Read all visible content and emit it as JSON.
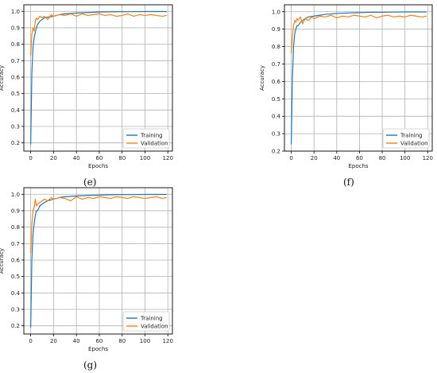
{
  "chart_data": [
    {
      "type": "line",
      "panel_label": "(e)",
      "xlabel": "Epochs",
      "ylabel": "Accuracy",
      "xlim": [
        -6,
        124
      ],
      "ylim": [
        0.15,
        1.04
      ],
      "xticks": [
        "0",
        "20",
        "40",
        "60",
        "80",
        "100",
        "120"
      ],
      "yticks": [
        "0.2",
        "0.3",
        "0.4",
        "0.5",
        "0.6",
        "0.7",
        "0.8",
        "0.9",
        "1.0"
      ],
      "grid": true,
      "legend_position": "lower-right",
      "series": [
        {
          "name": "Training",
          "color": "#1f77b4",
          "x": [
            0,
            1,
            2,
            3,
            4,
            5,
            6,
            8,
            10,
            12,
            15,
            20,
            25,
            30,
            40,
            50,
            60,
            70,
            80,
            90,
            100,
            110,
            119
          ],
          "y": [
            0.19,
            0.62,
            0.78,
            0.84,
            0.87,
            0.9,
            0.92,
            0.94,
            0.95,
            0.96,
            0.965,
            0.97,
            0.98,
            0.985,
            0.99,
            0.993,
            0.996,
            0.997,
            0.998,
            0.998,
            0.999,
            0.999,
            0.999
          ]
        },
        {
          "name": "Validation",
          "color": "#ff7f0e",
          "x": [
            0,
            1,
            2,
            3,
            4,
            5,
            6,
            8,
            10,
            12,
            15,
            18,
            20,
            25,
            30,
            35,
            40,
            45,
            50,
            55,
            60,
            65,
            70,
            75,
            80,
            85,
            90,
            95,
            100,
            105,
            110,
            115,
            119
          ],
          "y": [
            0.73,
            0.86,
            0.9,
            0.88,
            0.94,
            0.96,
            0.95,
            0.97,
            0.96,
            0.97,
            0.95,
            0.98,
            0.97,
            0.98,
            0.975,
            0.985,
            0.97,
            0.985,
            0.975,
            0.98,
            0.985,
            0.975,
            0.98,
            0.97,
            0.975,
            0.985,
            0.97,
            0.98,
            0.975,
            0.98,
            0.975,
            0.97,
            0.975
          ]
        }
      ]
    },
    {
      "type": "line",
      "panel_label": "(f)",
      "xlabel": "Epochs",
      "ylabel": "Accuracy",
      "xlim": [
        -6,
        124
      ],
      "ylim": [
        0.2,
        1.04
      ],
      "xticks": [
        "0",
        "20",
        "40",
        "60",
        "80",
        "100",
        "120"
      ],
      "yticks": [
        "0.2",
        "0.3",
        "0.4",
        "0.5",
        "0.6",
        "0.7",
        "0.8",
        "0.9",
        "1.0"
      ],
      "grid": true,
      "legend_position": "lower-right",
      "series": [
        {
          "name": "Training",
          "color": "#1f77b4",
          "x": [
            0,
            1,
            2,
            3,
            4,
            5,
            6,
            8,
            10,
            12,
            15,
            20,
            25,
            30,
            40,
            50,
            60,
            70,
            80,
            90,
            100,
            110,
            119
          ],
          "y": [
            0.24,
            0.62,
            0.8,
            0.87,
            0.9,
            0.92,
            0.92,
            0.94,
            0.95,
            0.96,
            0.97,
            0.975,
            0.98,
            0.985,
            0.99,
            0.993,
            0.995,
            0.997,
            0.997,
            0.998,
            0.999,
            0.999,
            0.999
          ]
        },
        {
          "name": "Validation",
          "color": "#ff7f0e",
          "x": [
            0,
            1,
            2,
            3,
            4,
            5,
            6,
            8,
            10,
            12,
            15,
            18,
            20,
            25,
            30,
            35,
            40,
            45,
            50,
            55,
            60,
            65,
            70,
            75,
            80,
            85,
            90,
            95,
            100,
            105,
            110,
            115,
            119
          ],
          "y": [
            0.76,
            0.86,
            0.92,
            0.95,
            0.94,
            0.96,
            0.95,
            0.97,
            0.93,
            0.96,
            0.95,
            0.97,
            0.96,
            0.975,
            0.97,
            0.98,
            0.965,
            0.975,
            0.97,
            0.98,
            0.975,
            0.97,
            0.98,
            0.965,
            0.975,
            0.98,
            0.97,
            0.975,
            0.97,
            0.98,
            0.975,
            0.97,
            0.975
          ]
        }
      ]
    },
    {
      "type": "line",
      "panel_label": "(g)",
      "xlabel": "Epochs",
      "ylabel": "Accuracy",
      "xlim": [
        -6,
        124
      ],
      "ylim": [
        0.15,
        1.04
      ],
      "xticks": [
        "0",
        "20",
        "40",
        "60",
        "80",
        "100",
        "120"
      ],
      "yticks": [
        "0.2",
        "0.3",
        "0.4",
        "0.5",
        "0.6",
        "0.7",
        "0.8",
        "0.9",
        "1.0"
      ],
      "grid": true,
      "legend_position": "lower-right",
      "series": [
        {
          "name": "Training",
          "color": "#1f77b4",
          "x": [
            0,
            1,
            2,
            3,
            4,
            5,
            6,
            8,
            10,
            12,
            15,
            20,
            25,
            30,
            40,
            50,
            60,
            70,
            80,
            90,
            100,
            110,
            119
          ],
          "y": [
            0.19,
            0.6,
            0.75,
            0.82,
            0.87,
            0.9,
            0.9,
            0.93,
            0.94,
            0.95,
            0.96,
            0.97,
            0.98,
            0.985,
            0.99,
            0.993,
            0.995,
            0.997,
            0.998,
            0.998,
            0.999,
            0.999,
            0.999
          ]
        },
        {
          "name": "Validation",
          "color": "#ff7f0e",
          "x": [
            0,
            1,
            2,
            3,
            4,
            5,
            6,
            8,
            10,
            12,
            15,
            18,
            20,
            25,
            30,
            35,
            40,
            45,
            50,
            55,
            60,
            65,
            70,
            75,
            80,
            85,
            90,
            95,
            100,
            105,
            110,
            115,
            119
          ],
          "y": [
            0.64,
            0.82,
            0.9,
            0.92,
            0.97,
            0.93,
            0.94,
            0.95,
            0.96,
            0.97,
            0.96,
            0.98,
            0.97,
            0.98,
            0.975,
            0.96,
            0.985,
            0.97,
            0.98,
            0.975,
            0.985,
            0.98,
            0.975,
            0.985,
            0.98,
            0.975,
            0.985,
            0.98,
            0.975,
            0.98,
            0.985,
            0.975,
            0.98
          ]
        }
      ]
    }
  ]
}
